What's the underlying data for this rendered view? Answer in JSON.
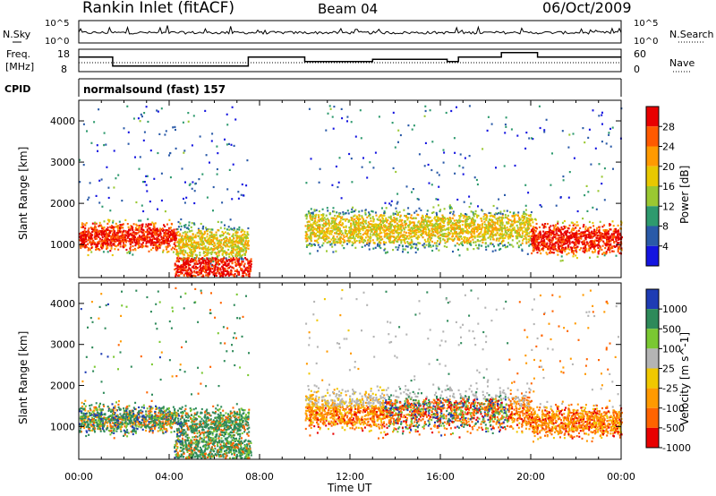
{
  "header": {
    "station": "Rankin Inlet (fitACF)",
    "beam": "Beam 04",
    "date": "06/Oct/2009"
  },
  "noise_panel": {
    "left_label": "N.Sky",
    "right_label": "N.Search",
    "left_ticks": [
      "10^5",
      "10^0"
    ],
    "right_ticks": [
      "10^5",
      "10^0"
    ]
  },
  "freq_panel": {
    "left_label_1": "Freq.",
    "left_label_2": "[MHz]",
    "left_ticks": [
      "18",
      "8"
    ],
    "right_label": "Nave",
    "right_ticks": [
      "60",
      "0"
    ],
    "step_hours": [
      0,
      1.5,
      7.5,
      10,
      13,
      16.3,
      16.8,
      18.7,
      20.3,
      24
    ],
    "step_levels": [
      0.35,
      0.75,
      0.35,
      0.55,
      0.45,
      0.55,
      0.35,
      0.15,
      0.35,
      0.55
    ]
  },
  "cpid": {
    "label": "CPID",
    "mode": "normalsound (fast)",
    "id": "157"
  },
  "chart_data": [
    {
      "type": "heatmap",
      "quantity": "Power",
      "xlabel": "Time UT",
      "ylabel": "Slant Range [km]",
      "xlim": [
        0,
        24
      ],
      "ylim": [
        200,
        4500
      ],
      "x_ticks": [
        "00:00",
        "04:00",
        "08:00",
        "12:00",
        "16:00",
        "20:00",
        "00:00"
      ],
      "y_ticks": [
        1000,
        2000,
        3000,
        4000
      ],
      "colorbar": {
        "label": "Power [dB]",
        "ticks": [
          "28",
          "24",
          "20",
          "16",
          "12",
          "8",
          "4"
        ],
        "colors": [
          "#e80000",
          "#ff5a00",
          "#ff9a00",
          "#e8c800",
          "#9ac832",
          "#2e9a6e",
          "#2a5aa8",
          "#1414e0"
        ]
      },
      "main_band": [
        {
          "t0": 0,
          "t1": 4.3,
          "r0": 700,
          "r1": 1700,
          "peak": 26
        },
        {
          "t0": 4.3,
          "t1": 7.5,
          "r0": 400,
          "r1": 1700,
          "peak": 12
        },
        {
          "t0": 10,
          "t1": 20,
          "r0": 700,
          "r1": 2100,
          "peak": 22
        },
        {
          "t0": 20,
          "t1": 24,
          "r0": 600,
          "r1": 1700,
          "peak": 24
        }
      ]
    },
    {
      "type": "heatmap",
      "quantity": "Velocity",
      "xlabel": "Time UT",
      "ylabel": "Slant Range [km]",
      "xlim": [
        0,
        24
      ],
      "ylim": [
        200,
        4500
      ],
      "x_ticks": [
        "00:00",
        "04:00",
        "08:00",
        "12:00",
        "16:00",
        "20:00",
        "00:00"
      ],
      "y_ticks": [
        1000,
        2000,
        3000,
        4000
      ],
      "colorbar": {
        "label": "Velocity [m s^-1]",
        "ticks": [
          "1000",
          "500",
          "100",
          "25",
          "-25",
          "-100",
          "-500",
          "-1000"
        ],
        "colors": [
          "#1e3cb4",
          "#2e8a5a",
          "#7ac832",
          "#b4b4b4",
          "#f0c800",
          "#ff9a00",
          "#ff6400",
          "#e80000"
        ]
      }
    }
  ]
}
